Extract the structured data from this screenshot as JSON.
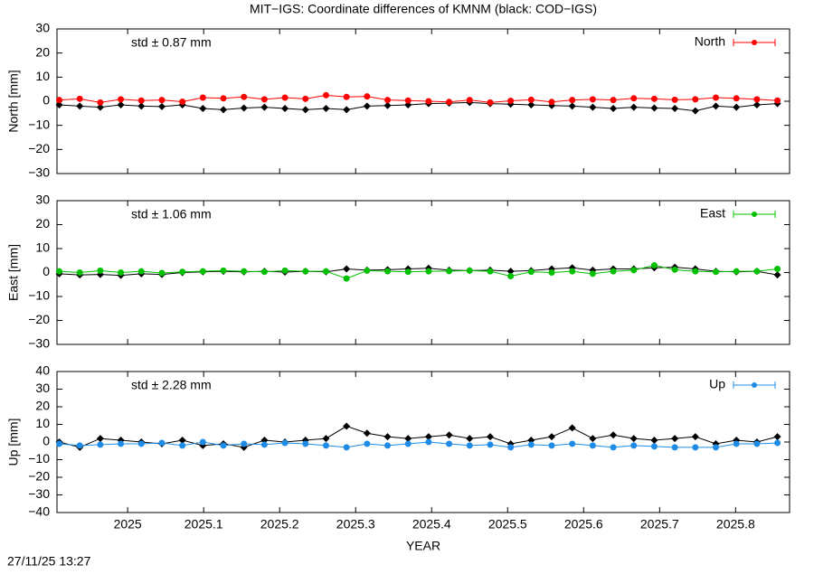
{
  "title": "MIT−IGS: Coordinate differences of KMNM (black: COD−IGS)",
  "timestamp": "27/11/25 13:27",
  "chart_data": [
    {
      "type": "line",
      "ylabel": "North [mm]",
      "annotation": "std ± 0.87 mm",
      "annotation_color": "#ff0000",
      "xlim": [
        2024.907,
        2025.871
      ],
      "xticks": [
        2025,
        2025.1,
        2025.2,
        2025.3,
        2025.4,
        2025.5,
        2025.6,
        2025.7,
        2025.8
      ],
      "ylim": [
        -30,
        30
      ],
      "yticks": [
        {
          "value": -30,
          "label": "−30"
        },
        {
          "value": -20,
          "label": "−20"
        },
        {
          "value": -10,
          "label": "−10"
        },
        0,
        10,
        20,
        30
      ],
      "legend": "upper right",
      "x": [
        2024.91,
        2024.937,
        2024.964,
        2024.991,
        2025.018,
        2025.045,
        2025.072,
        2025.099,
        2025.126,
        2025.153,
        2025.18,
        2025.207,
        2025.234,
        2025.261,
        2025.288,
        2025.315,
        2025.342,
        2025.369,
        2025.396,
        2025.423,
        2025.45,
        2025.477,
        2025.504,
        2025.531,
        2025.558,
        2025.585,
        2025.612,
        2025.639,
        2025.666,
        2025.693,
        2025.72,
        2025.747,
        2025.774,
        2025.801,
        2025.828,
        2025.855
      ],
      "series": [
        {
          "color": "#000000",
          "marker": "diamond",
          "values": [
            -1.5,
            -2,
            -2.5,
            -1.5,
            -2,
            -2.2,
            -1.5,
            -3,
            -3.5,
            -2.8,
            -2.5,
            -3,
            -3.5,
            -3,
            -3.5,
            -2,
            -1.8,
            -1.5,
            -1,
            -0.8,
            -0.5,
            -1,
            -1.2,
            -1.5,
            -1.8,
            -2,
            -2.5,
            -3,
            -2.5,
            -2.8,
            -3,
            -4,
            -2,
            -2.5,
            -1.5,
            -1
          ]
        },
        {
          "name": "North",
          "color": "#ff0000",
          "marker": "circle",
          "values": [
            0.5,
            1,
            -0.5,
            0.8,
            0.3,
            0.5,
            -0.2,
            1.5,
            1.2,
            1.8,
            0.8,
            1.5,
            1.0,
            2.5,
            1.8,
            2.0,
            0.5,
            0.3,
            0.0,
            -0.3,
            0.5,
            -0.5,
            0.2,
            0.6,
            -0.3,
            0.5,
            0.8,
            0.5,
            1.2,
            1.0,
            0.6,
            0.8,
            1.5,
            1.2,
            0.8,
            0.3
          ]
        }
      ]
    },
    {
      "type": "line",
      "ylabel": "East [mm]",
      "annotation": "std ± 1.06 mm",
      "annotation_color": "#00c000",
      "xlim": [
        2024.907,
        2025.871
      ],
      "xticks": [
        2025,
        2025.1,
        2025.2,
        2025.3,
        2025.4,
        2025.5,
        2025.6,
        2025.7,
        2025.8
      ],
      "ylim": [
        -30,
        30
      ],
      "yticks": [
        {
          "value": -30,
          "label": "−30"
        },
        {
          "value": -20,
          "label": "−20"
        },
        {
          "value": -10,
          "label": "−10"
        },
        0,
        10,
        20,
        30
      ],
      "legend": "upper right",
      "x": [
        2024.91,
        2024.937,
        2024.964,
        2024.991,
        2025.018,
        2025.045,
        2025.072,
        2025.099,
        2025.126,
        2025.153,
        2025.18,
        2025.207,
        2025.234,
        2025.261,
        2025.288,
        2025.315,
        2025.342,
        2025.369,
        2025.396,
        2025.423,
        2025.45,
        2025.477,
        2025.504,
        2025.531,
        2025.558,
        2025.585,
        2025.612,
        2025.639,
        2025.666,
        2025.693,
        2025.72,
        2025.747,
        2025.774,
        2025.801,
        2025.828,
        2025.855
      ],
      "series": [
        {
          "color": "#000000",
          "marker": "diamond",
          "values": [
            -0.5,
            -1,
            -0.8,
            -1.2,
            -0.5,
            -0.8,
            0,
            0.3,
            0.5,
            0.3,
            0.5,
            0.2,
            0.5,
            0.3,
            1.5,
            1,
            1.2,
            1.5,
            1.8,
            1,
            0.8,
            1,
            0.5,
            0.8,
            1.5,
            2,
            1,
            1.5,
            1.5,
            2,
            2.2,
            1.5,
            0.5,
            0.3,
            0.5,
            -1
          ]
        },
        {
          "name": "East",
          "color": "#00c000",
          "marker": "circle",
          "values": [
            0.5,
            0,
            0.8,
            0,
            0.5,
            -0.2,
            0.3,
            0.5,
            0.8,
            0.5,
            0.3,
            0.8,
            0.5,
            0.5,
            -2.5,
            0.8,
            0.5,
            0.3,
            0.5,
            0.6,
            0.8,
            0.5,
            -1.5,
            0.3,
            0,
            0.5,
            -0.5,
            0.5,
            1,
            3,
            1.2,
            0.5,
            0.3,
            0.5,
            0.5,
            1.5
          ]
        }
      ]
    },
    {
      "type": "line",
      "ylabel": "Up [mm]",
      "xlabel": "YEAR",
      "annotation": "std ± 2.28 mm",
      "annotation_color": "#1e8ce6",
      "xlim": [
        2024.907,
        2025.871
      ],
      "xticks": [
        2025,
        2025.1,
        2025.2,
        2025.3,
        2025.4,
        2025.5,
        2025.6,
        2025.7,
        2025.8
      ],
      "ylim": [
        -40,
        40
      ],
      "yticks": [
        {
          "value": -40,
          "label": "−40"
        },
        {
          "value": -30,
          "label": "−30"
        },
        {
          "value": -20,
          "label": "−20"
        },
        {
          "value": -10,
          "label": "−10"
        },
        0,
        10,
        20,
        30,
        40
      ],
      "legend": "upper right",
      "x": [
        2024.91,
        2024.937,
        2024.964,
        2024.991,
        2025.018,
        2025.045,
        2025.072,
        2025.099,
        2025.126,
        2025.153,
        2025.18,
        2025.207,
        2025.234,
        2025.261,
        2025.288,
        2025.315,
        2025.342,
        2025.369,
        2025.396,
        2025.423,
        2025.45,
        2025.477,
        2025.504,
        2025.531,
        2025.558,
        2025.585,
        2025.612,
        2025.639,
        2025.666,
        2025.693,
        2025.72,
        2025.747,
        2025.774,
        2025.801,
        2025.828,
        2025.855
      ],
      "series": [
        {
          "color": "#000000",
          "marker": "diamond",
          "values": [
            0,
            -3,
            2,
            1,
            0,
            -1,
            1,
            -2,
            -1,
            -3,
            1,
            0,
            1,
            2,
            9,
            5,
            3,
            2,
            3,
            4,
            2,
            3,
            -1,
            1,
            3,
            8,
            2,
            4,
            2,
            1,
            2,
            3,
            -1,
            1,
            0,
            3
          ]
        },
        {
          "name": "Up",
          "color": "#1e8ce6",
          "marker": "circle",
          "values": [
            -1,
            -2,
            -1.5,
            -1,
            -1,
            -0.5,
            -2,
            0,
            -2,
            -1,
            -1.5,
            -0.5,
            -1,
            -2,
            -3,
            -1,
            -2,
            -1,
            0,
            -1,
            -2,
            -1.5,
            -3,
            -1.5,
            -2,
            -1,
            -2,
            -3,
            -2,
            -2.5,
            -3,
            -3,
            -3,
            -1,
            -1,
            -0.5
          ]
        }
      ]
    }
  ]
}
